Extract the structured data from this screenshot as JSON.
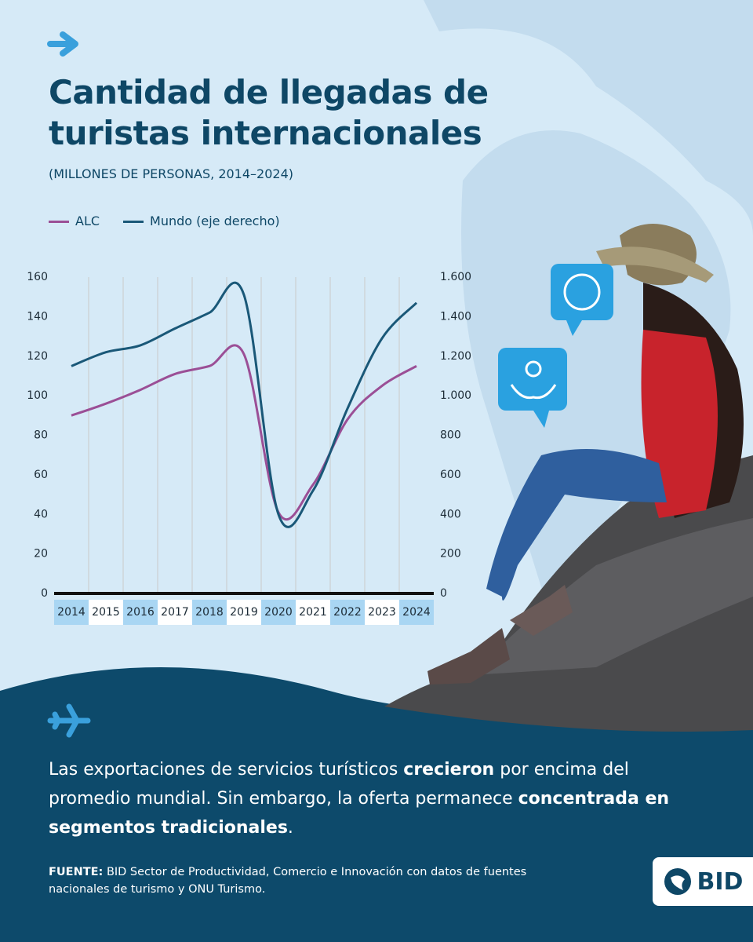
{
  "chart_data": {
    "type": "line",
    "title": "Cantidad de llegadas de turistas internacionales",
    "subtitle": "(MILLONES DE PERSONAS, 2014–2024)",
    "categories": [
      "2014",
      "2015",
      "2016",
      "2017",
      "2018",
      "2019",
      "2020",
      "2021",
      "2022",
      "2023",
      "2024"
    ],
    "series": [
      {
        "name": "ALC",
        "color": "#9b4f96",
        "values": [
          90,
          96,
          103,
          111,
          115,
          121,
          41,
          55,
          88,
          105,
          115
        ]
      },
      {
        "name": "Mundo (eje derecho)",
        "color": "#1a5878",
        "axis": "y2",
        "values": [
          1150,
          1220,
          1255,
          1340,
          1420,
          1510,
          400,
          520,
          935,
          1290,
          1470
        ]
      }
    ],
    "ylim": [
      0,
      160
    ],
    "yticks": [
      0,
      20,
      40,
      60,
      80,
      100,
      120,
      140,
      160
    ],
    "y2lim": [
      0,
      1600
    ],
    "y2ticks": [
      0,
      200,
      400,
      600,
      800,
      {
        "value": 1000,
        "label": "1.000"
      },
      {
        "value": 1200,
        "label": "1.200"
      },
      {
        "value": 1400,
        "label": "1.400"
      },
      {
        "value": 1600,
        "label": "1.600"
      }
    ],
    "grid": true
  },
  "message": [
    "Las exportaciones de servicios turísticos ",
    "crecieron",
    " por encima del promedio mundial. Sin embargo, la oferta permanece ",
    "concentrada en segmentos tradicionales",
    "."
  ],
  "source": {
    "label": "FUENTE:",
    "text": "BID Sector de Productividad, Comercio e Innovación con datos de fuentes nacionales de turismo y ONU Turismo."
  },
  "logo": "BID"
}
